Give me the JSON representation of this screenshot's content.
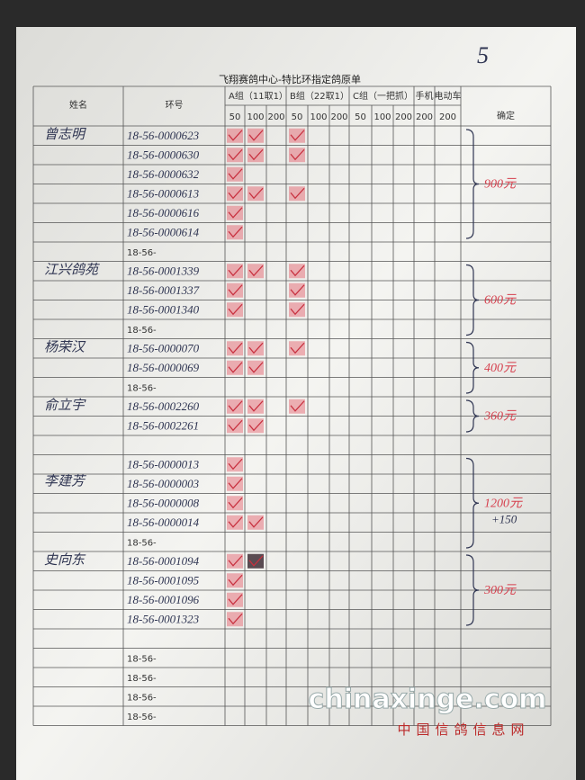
{
  "page_number": "5",
  "title": "飞翔赛鸽中心-特比环指定鸽原单",
  "headers": {
    "name": "姓名",
    "ring": "环号",
    "groups": [
      {
        "label": "A组（11取1）",
        "cols": [
          "50",
          "100",
          "200"
        ]
      },
      {
        "label": "B组（22取1）",
        "cols": [
          "50",
          "100",
          "200"
        ]
      },
      {
        "label": "C组（一把抓）",
        "cols": [
          "50",
          "100",
          "200"
        ]
      }
    ],
    "phone": "手机",
    "phone_col": "200",
    "ebike": "电动车",
    "ebike_col": "200",
    "confirm": "确定"
  },
  "entries": [
    {
      "name": "曾志明",
      "rings": [
        "18-56-0000623",
        "18-56-0000630",
        "18-56-0000632",
        "18-56-0000613",
        "18-56-0000616",
        "18-56-0000614",
        "18-56-"
      ],
      "total": "900元"
    },
    {
      "name": "江兴鸽苑",
      "rings": [
        "18-56-0001339",
        "18-56-0001337",
        "18-56-0001340",
        "18-56-"
      ],
      "total": "600元"
    },
    {
      "name": "杨荣汉",
      "rings": [
        "18-56-0000070",
        "18-56-0000069",
        "18-56-"
      ],
      "total": "400元"
    },
    {
      "name": "俞立宇",
      "rings": [
        "18-56-0002260",
        "18-56-0002261"
      ],
      "total": "360元"
    },
    {
      "name": "李建芳",
      "rings": [
        "18-56-0000013",
        "18-56-0000003",
        "18-56-0000008",
        "18-56-0000014",
        "18-56-"
      ],
      "total": "1200元",
      "extra": "+150"
    },
    {
      "name": "史向东",
      "rings": [
        "18-56-0001094",
        "18-56-0001095",
        "18-56-0001096",
        "18-56-0001323"
      ],
      "total": "300元"
    }
  ],
  "blank_rings": [
    "18-56-",
    "18-56-",
    "18-56-",
    "18-56-"
  ],
  "watermark": {
    "site": "chinaxinge.com",
    "name": "中国信鸽信息网"
  }
}
